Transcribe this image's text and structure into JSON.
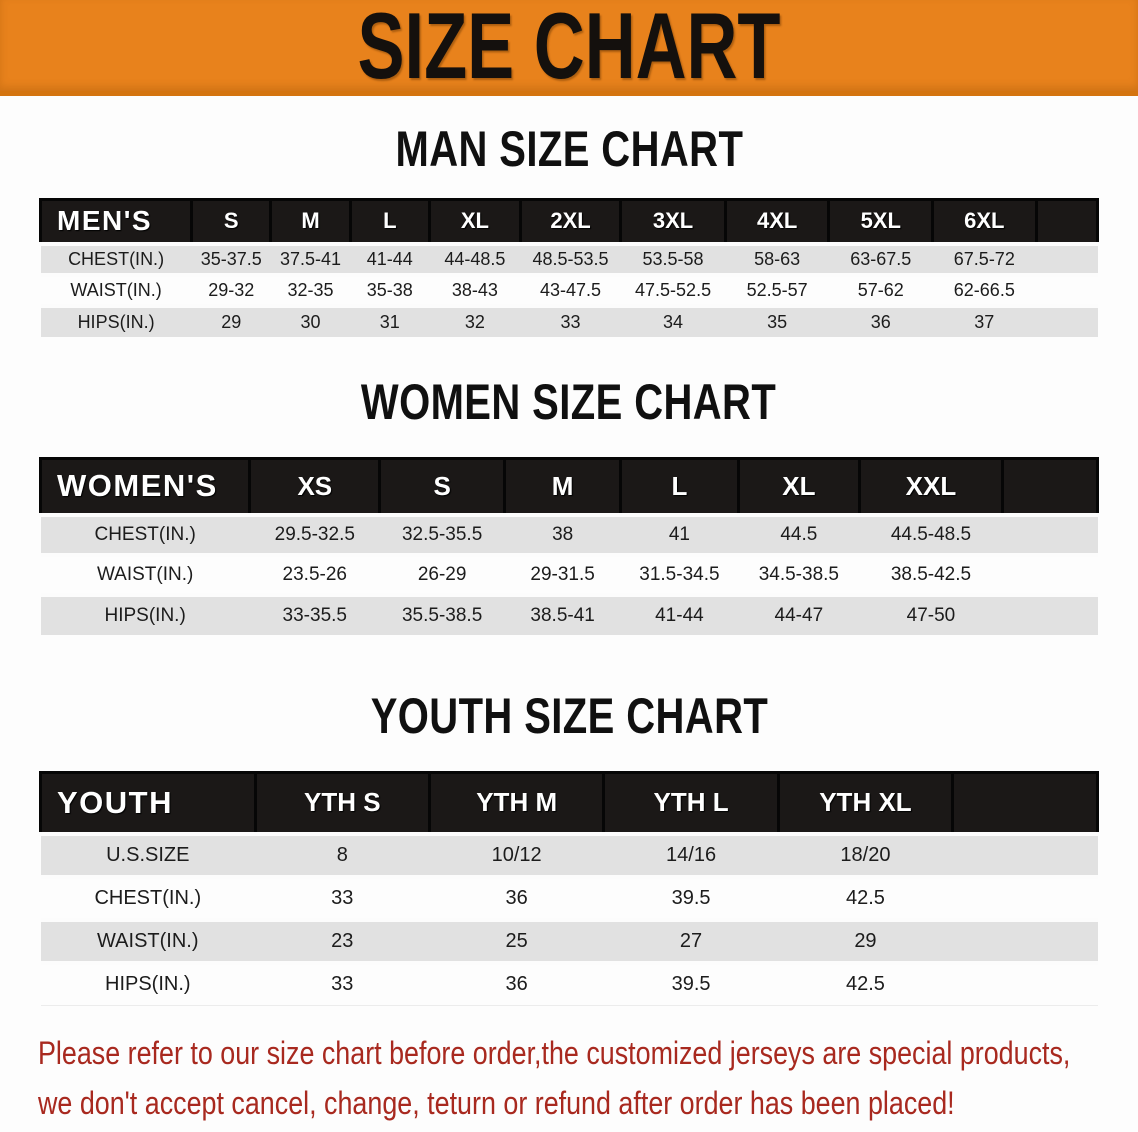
{
  "banner": {
    "title": "SIZE CHART"
  },
  "theme": {
    "banner_bg": "#E8821C",
    "banner_edge": "#D4740F",
    "header_bg": "#1B1817",
    "row_gray": "#E1E1E1",
    "warn_red": "#A8291F"
  },
  "sections": [
    {
      "title": "MAN SIZE CHART",
      "table": {
        "header_label": "MEN'S",
        "columns": [
          "S",
          "M",
          "L",
          "XL",
          "2XL",
          "3XL",
          "4XL",
          "5XL",
          "6XL"
        ],
        "rows": [
          {
            "label": "CHEST(IN.)",
            "values": [
              "35-37.5",
              "37.5-41",
              "41-44",
              "44-48.5",
              "48.5-53.5",
              "53.5-58",
              "58-63",
              "63-67.5",
              "67.5-72"
            ]
          },
          {
            "label": "WAIST(IN.)",
            "values": [
              "29-32",
              "32-35",
              "35-38",
              "38-43",
              "43-47.5",
              "47.5-52.5",
              "52.5-57",
              "57-62",
              "62-66.5"
            ]
          },
          {
            "label": "HIPS(IN.)",
            "values": [
              "29",
              "30",
              "31",
              "32",
              "33",
              "34",
              "35",
              "36",
              "37"
            ]
          }
        ]
      }
    },
    {
      "title": "WOMEN SIZE CHART",
      "table": {
        "header_label": "WOMEN'S",
        "columns": [
          "XS",
          "S",
          "M",
          "L",
          "XL",
          "XXL"
        ],
        "rows": [
          {
            "label": "CHEST(IN.)",
            "values": [
              "29.5-32.5",
              "32.5-35.5",
              "38",
              "41",
              "44.5",
              "44.5-48.5"
            ]
          },
          {
            "label": "WAIST(IN.)",
            "values": [
              "23.5-26",
              "26-29",
              "29-31.5",
              "31.5-34.5",
              "34.5-38.5",
              "38.5-42.5"
            ]
          },
          {
            "label": "HIPS(IN.)",
            "values": [
              "33-35.5",
              "35.5-38.5",
              "38.5-41",
              "41-44",
              "44-47",
              "47-50"
            ]
          }
        ]
      }
    },
    {
      "title": "YOUTH SIZE CHART",
      "table": {
        "header_label": "YOUTH",
        "columns": [
          "YTH S",
          "YTH M",
          "YTH L",
          "YTH XL"
        ],
        "rows": [
          {
            "label": "U.S.SIZE",
            "values": [
              "8",
              "10/12",
              "14/16",
              "18/20"
            ]
          },
          {
            "label": "CHEST(IN.)",
            "values": [
              "33",
              "36",
              "39.5",
              "42.5"
            ]
          },
          {
            "label": "WAIST(IN.)",
            "values": [
              "23",
              "25",
              "27",
              "29"
            ]
          },
          {
            "label": "HIPS(IN.)",
            "values": [
              "33",
              "36",
              "39.5",
              "42.5"
            ]
          }
        ]
      }
    }
  ],
  "disclaimer": {
    "line1": "Please refer to our size chart before order,the customized jerseys are special products,",
    "line2": "we don't accept cancel, change, teturn or refund after order has been placed!"
  }
}
